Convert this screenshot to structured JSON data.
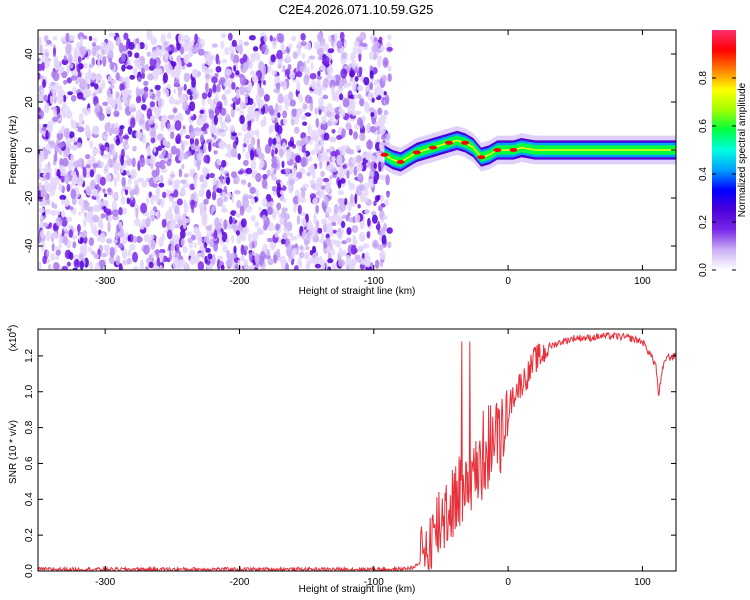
{
  "title": "C2E4.2026.071.10.59.G25",
  "chart_data": [
    {
      "type": "heatmap",
      "xlabel": "Height of straight line (km)",
      "ylabel": "Frequency (Hz)",
      "xlim": [
        -350,
        125
      ],
      "ylim": [
        -50,
        50
      ],
      "xticks": [
        -300,
        -200,
        -100,
        0,
        100
      ],
      "yticks": [
        -40,
        -20,
        0,
        20,
        40
      ],
      "colorbar": {
        "label": "Normalized spectral amplitude",
        "range": [
          0,
          1
        ],
        "ticks": [
          0.0,
          0.2,
          0.4,
          0.6,
          0.8
        ],
        "colors": [
          "#ffffff",
          "#cbb0f5",
          "#7a28e8",
          "#4b00d8",
          "#0000ff",
          "#00a0ff",
          "#00ffe0",
          "#00ff40",
          "#a0ff00",
          "#ffff00",
          "#ff8000",
          "#ff0000",
          "#ff3070"
        ]
      },
      "noise_region": {
        "x": [
          -350,
          -88
        ],
        "freq": [
          -50,
          48
        ]
      },
      "ridge": {
        "x": [
          -92,
          -86,
          -80,
          -74,
          -68,
          -62,
          -56,
          -50,
          -44,
          -38,
          -32,
          -26,
          -20,
          -14,
          -8,
          -2,
          4,
          10,
          20,
          40,
          60,
          80,
          100,
          125
        ],
        "freq": [
          -2,
          -4,
          -5,
          -3,
          -1,
          0,
          1,
          2,
          3,
          4,
          3,
          1,
          -3,
          -2,
          0,
          0,
          0,
          1,
          0,
          0,
          0,
          0,
          0,
          0
        ]
      }
    },
    {
      "type": "line",
      "xlabel": "Height of straight line (km)",
      "ylabel": "SNR (10 * v/v)",
      "yscale_label": "(x10",
      "yscale_exp": "4",
      "y_unit": 10000,
      "xlim": [
        -350,
        125
      ],
      "ylim": [
        0,
        1.35
      ],
      "xticks": [
        -300,
        -200,
        -100,
        0,
        100
      ],
      "yticks": [
        0.0,
        0.2,
        0.4,
        0.6,
        0.8,
        1.0,
        1.2
      ],
      "series": [
        {
          "color": "#e8303a",
          "x": [
            -350,
            -300,
            -250,
            -200,
            -150,
            -100,
            -80,
            -70,
            -65,
            -60,
            -55,
            -50,
            -45,
            -40,
            -35,
            -30,
            -25,
            -20,
            -15,
            -10,
            -5,
            0,
            5,
            10,
            15,
            20,
            25,
            30,
            40,
            50,
            60,
            70,
            80,
            90,
            100,
            105,
            110,
            112,
            115,
            118,
            120,
            125
          ],
          "values": [
            0.01,
            0.01,
            0.01,
            0.01,
            0.01,
            0.01,
            0.01,
            0.02,
            0.05,
            0.12,
            0.2,
            0.3,
            0.35,
            0.4,
            0.45,
            0.55,
            0.5,
            0.6,
            0.7,
            0.75,
            0.8,
            0.9,
            1.0,
            1.05,
            1.1,
            1.18,
            1.2,
            1.25,
            1.28,
            1.3,
            1.3,
            1.31,
            1.31,
            1.3,
            1.28,
            1.22,
            1.15,
            0.98,
            1.12,
            1.2,
            1.19,
            1.2
          ]
        }
      ]
    }
  ]
}
